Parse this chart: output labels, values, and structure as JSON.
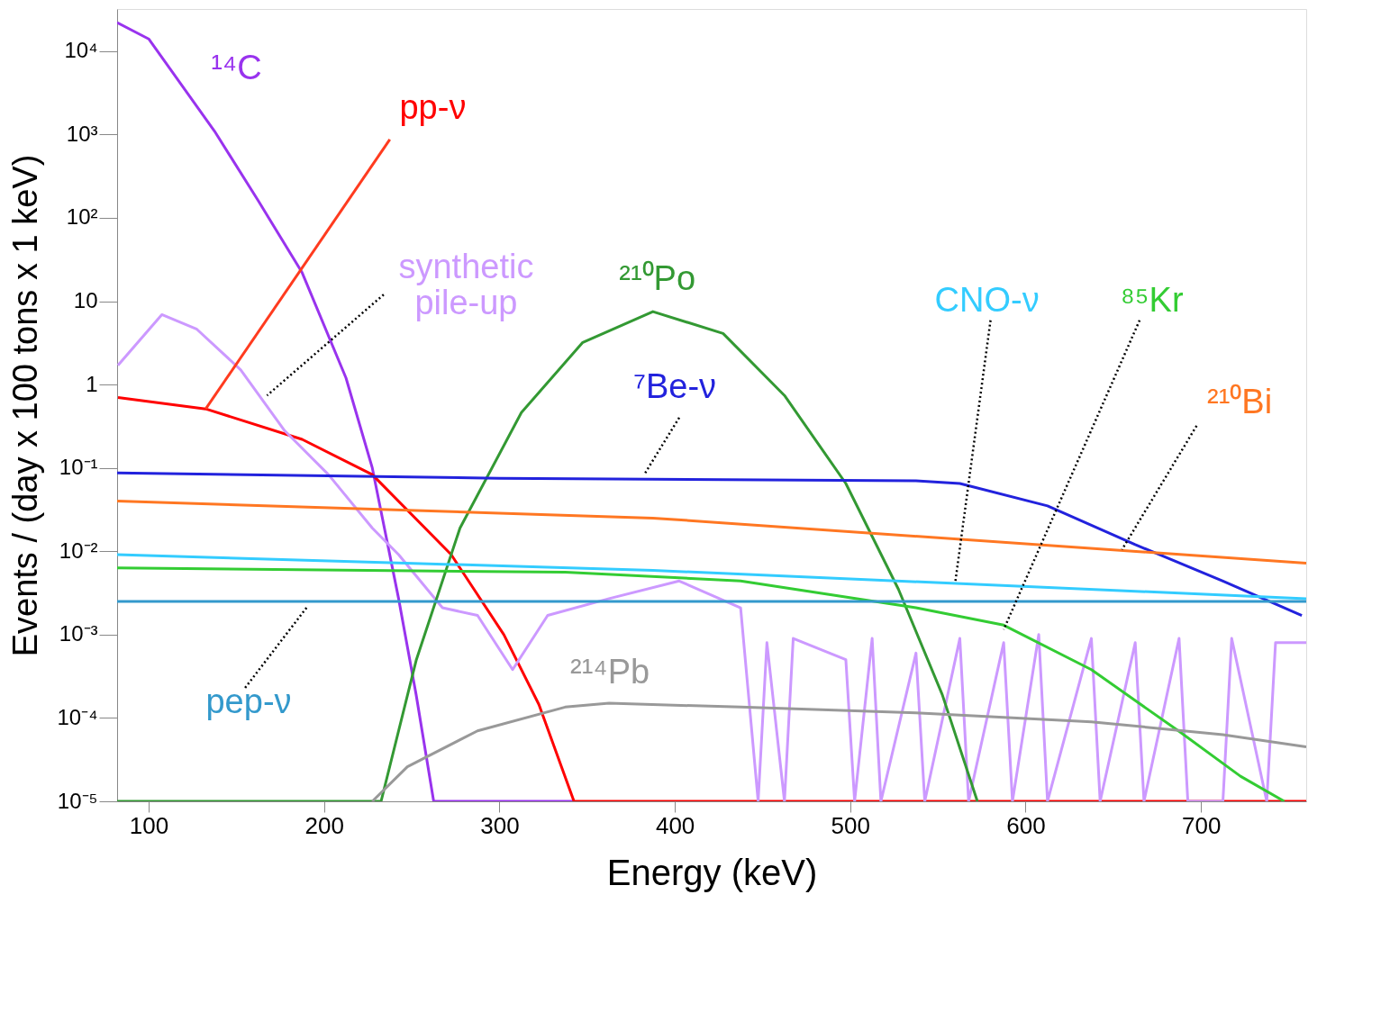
{
  "chart_data": {
    "type": "line",
    "xlabel": "Energy (keV)",
    "ylabel": "Events / (day x 100 tons x 1 keV)",
    "log": "y",
    "xlim": [
      82,
      760
    ],
    "ylim": [
      1e-05,
      32000
    ],
    "xticks": [
      100,
      200,
      300,
      400,
      500,
      600,
      700
    ],
    "yticks": [
      {
        "value": 1e-05,
        "label": "10⁻⁵"
      },
      {
        "value": 0.0001,
        "label": "10⁻⁴"
      },
      {
        "value": 0.001,
        "label": "10⁻³"
      },
      {
        "value": 0.01,
        "label": "10⁻²"
      },
      {
        "value": 0.1,
        "label": "10⁻¹"
      },
      1,
      10,
      {
        "value": 100,
        "label": "10²"
      },
      {
        "value": 1000,
        "label": "10³"
      },
      {
        "value": 10000,
        "label": "10⁴"
      }
    ],
    "grid": false,
    "legend": false,
    "marker": "none",
    "line_style": "solid",
    "series": [
      {
        "name": "¹⁴C",
        "color": "#9933ee",
        "x": [
          82,
          100,
          137.5,
          162.5,
          187.5,
          212.5,
          227.5,
          242.5,
          252.5,
          262.5,
          342.5
        ],
        "values": [
          22000,
          14000,
          1100,
          160,
          22,
          1.2,
          0.1,
          0.0027,
          0.00019,
          1e-05,
          1e-05
        ]
      },
      {
        "name": "pp-ν",
        "color": "#ff0000",
        "x": [
          82.5,
          132.5,
          187.5,
          227.5,
          272.5,
          302.5,
          322.5,
          342.5,
          760
        ],
        "values": [
          0.7,
          0.51,
          0.22,
          0.083,
          0.0091,
          0.001,
          0.000145,
          1e-05,
          1e-05
        ]
      },
      {
        "name": "synthetic pile-up",
        "color": "#cc99ff",
        "x": [
          82.5,
          107.5,
          127.5,
          152.5,
          177.5,
          202.5,
          227.5,
          242.5,
          267.5,
          287.5,
          307.5,
          327.5,
          362.5,
          402.5,
          437.5,
          447.5,
          452.5,
          462.5,
          467.5,
          497.5,
          502.5,
          512.5,
          517.5,
          537.5,
          542.5,
          562.5,
          567.5,
          587.5,
          592.5,
          607.5,
          612.5,
          637.5,
          642.5,
          662.5,
          667.5,
          687.5,
          692.5,
          712.5,
          717.5,
          737.5,
          742.5,
          760
        ],
        "values": [
          1.7,
          6.9,
          4.6,
          1.5,
          0.28,
          0.083,
          0.019,
          0.0091,
          0.0021,
          0.0017,
          0.00038,
          0.0017,
          0.0027,
          0.0044,
          0.0021,
          1e-05,
          0.0008,
          1e-05,
          0.0009,
          0.0005,
          1e-05,
          0.0009,
          1e-05,
          0.0006,
          1e-05,
          0.0009,
          1e-05,
          0.0008,
          1e-05,
          0.001,
          1e-05,
          0.0009,
          1e-05,
          0.0008,
          1e-05,
          0.0009,
          1e-05,
          1e-05,
          0.0009,
          1e-05,
          0.0008,
          0.0008
        ]
      },
      {
        "name": "²¹⁰Po",
        "color": "#339933",
        "x": [
          82,
          232.5,
          252.5,
          277.5,
          312.5,
          347.5,
          387.5,
          427.5,
          462.5,
          497.5,
          527.5,
          552.5,
          572.5
        ],
        "values": [
          1e-05,
          1e-05,
          0.00049,
          0.019,
          0.46,
          3.2,
          7.5,
          4.1,
          0.74,
          0.065,
          0.0035,
          0.00019,
          1e-05
        ]
      },
      {
        "name": "⁷Be-ν",
        "color": "#2222dd",
        "x": [
          82,
          300,
          537.5,
          562.5,
          612.5,
          662.5,
          712.5,
          757.5
        ],
        "values": [
          0.087,
          0.075,
          0.07,
          0.065,
          0.035,
          0.012,
          0.0044,
          0.0017
        ]
      },
      {
        "name": "CNO-ν",
        "color": "#33ccff",
        "x": [
          82,
          387.5,
          760
        ],
        "values": [
          0.0091,
          0.0059,
          0.0027
        ]
      },
      {
        "name": "⁸⁵Kr",
        "color": "#33cc33",
        "x": [
          82,
          337.5,
          437.5,
          537.5,
          587.5,
          637.5,
          687.5,
          722.5,
          747.5
        ],
        "values": [
          0.0063,
          0.0056,
          0.0044,
          0.0021,
          0.0013,
          0.00038,
          6.9e-05,
          2e-05,
          1e-05
        ]
      },
      {
        "name": "²¹⁰Bi",
        "color": "#ff7722",
        "x": [
          82,
          387.5,
          760
        ],
        "values": [
          0.04,
          0.025,
          0.0072
        ]
      },
      {
        "name": "²¹⁴Pb",
        "color": "#999999",
        "x": [
          227.5,
          247.5,
          287.5,
          337.5,
          362.5,
          437.5,
          537.5,
          637.5,
          712.5,
          760
        ],
        "values": [
          1e-05,
          2.6e-05,
          7e-05,
          0.000135,
          0.00015,
          0.000135,
          0.000115,
          9e-05,
          6.3e-05,
          4.5e-05
        ]
      },
      {
        "name": "pep-ν",
        "color": "#3399cc",
        "x": [
          82,
          400,
          760
        ],
        "values": [
          0.0025,
          0.0025,
          0.0025
        ]
      }
    ]
  }
}
